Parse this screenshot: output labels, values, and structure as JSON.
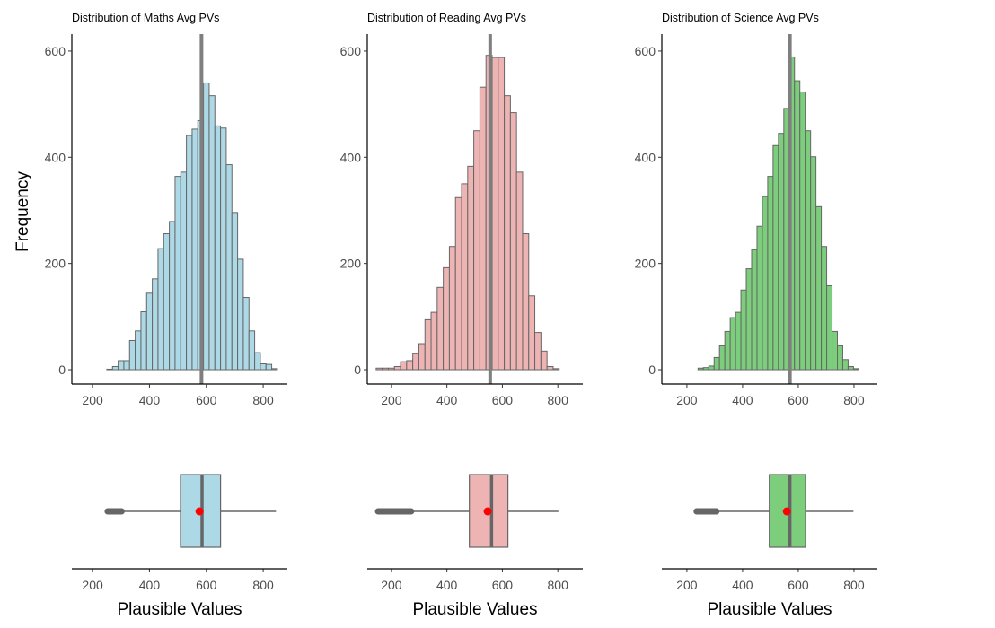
{
  "chart_data": {
    "type": "histogram+boxplot",
    "ylabel": "Frequency",
    "xlabel": "Plausible Values",
    "yticks": [
      0,
      200,
      400,
      600
    ],
    "xticks": [
      200,
      400,
      600,
      800
    ],
    "ylim": [
      -27,
      632
    ],
    "panels": [
      {
        "title": "Distribution of Maths Avg PVs",
        "fill": "#ADD8E6",
        "xlim": [
          127,
          885
        ],
        "bin_start": 250,
        "bin_width": 20,
        "counts": [
          1,
          6,
          17,
          17,
          55,
          73,
          109,
          144,
          171,
          228,
          256,
          279,
          364,
          372,
          441,
          453,
          469,
          540,
          516,
          459,
          455,
          386,
          296,
          208,
          136,
          73,
          32,
          11,
          10,
          2
        ],
        "mean_line": 583,
        "box": {
          "whisker_low": 302,
          "q1": 509,
          "median": 585,
          "q3": 650,
          "whisker_high": 845,
          "mean": 576,
          "outliers_range": [
            253,
            302
          ]
        }
      },
      {
        "title": "Distribution of Reading Avg PVs",
        "fill": "#EEB4B4",
        "xlim": [
          113,
          890
        ],
        "bin_start": 145,
        "bin_width": 22,
        "counts": [
          3,
          3,
          3,
          6,
          15,
          17,
          30,
          49,
          94,
          108,
          155,
          192,
          232,
          324,
          350,
          383,
          450,
          532,
          592,
          588,
          588,
          516,
          484,
          372,
          256,
          139,
          70,
          35,
          6,
          2
        ],
        "mean_line": 556,
        "box": {
          "whisker_low": 271,
          "q1": 481,
          "median": 561,
          "q3": 620,
          "whisker_high": 802,
          "mean": 547,
          "outliers_range": [
            152,
            271
          ]
        }
      },
      {
        "title": "Distribution of Science Avg PVs",
        "fill": "#7CCD7C",
        "xlim": [
          110,
          884
        ],
        "bin_start": 240,
        "bin_width": 19.25,
        "counts": [
          3,
          4,
          7,
          23,
          45,
          72,
          98,
          108,
          150,
          190,
          226,
          270,
          326,
          364,
          422,
          445,
          492,
          589,
          544,
          523,
          450,
          401,
          307,
          232,
          158,
          72,
          45,
          19,
          6,
          2
        ],
        "mean_line": 570,
        "box": {
          "whisker_low": 306,
          "q1": 496,
          "median": 570,
          "q3": 626,
          "whisker_high": 798,
          "mean": 559,
          "outliers_range": [
            235,
            306
          ]
        }
      }
    ]
  }
}
